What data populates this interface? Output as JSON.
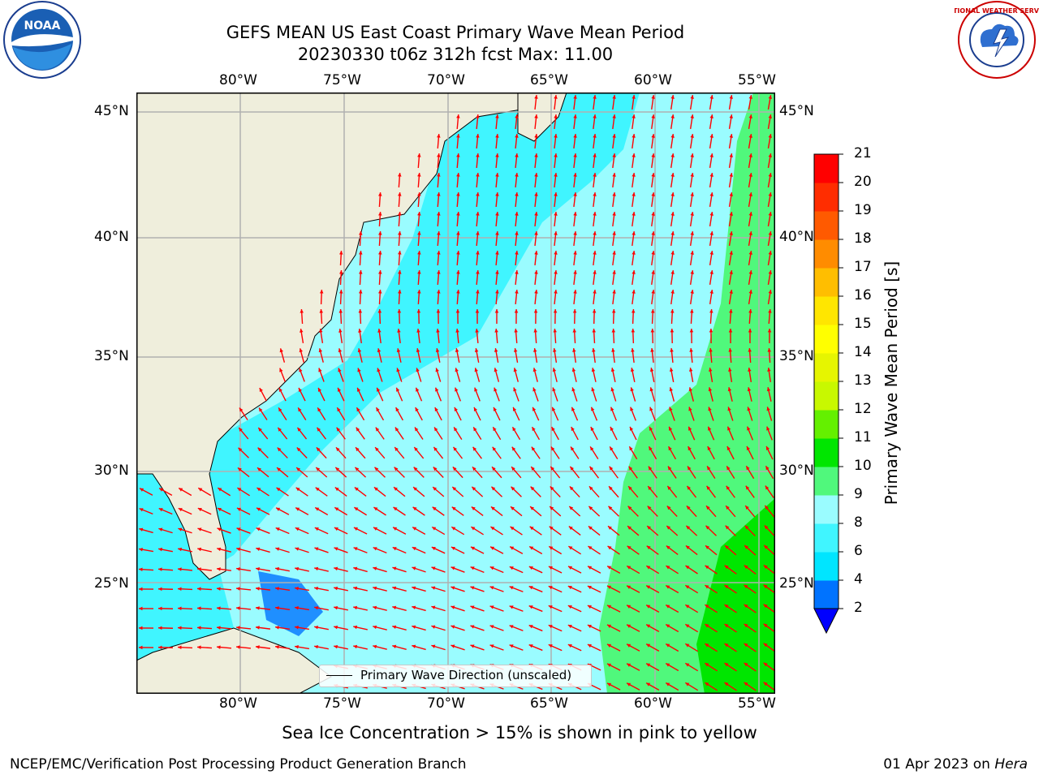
{
  "header": {
    "title_line1": "GEFS MEAN US East Coast Primary Wave Mean Period",
    "title_line2": "20230330 t06z 312h fcst   Max: 11.00"
  },
  "logos": {
    "left": {
      "icon": "noaa-logo",
      "text": "NOAA"
    },
    "right": {
      "icon": "nws-logo",
      "text": "NATIONAL WEATHER SERVICE"
    }
  },
  "map": {
    "lon_labels": [
      "80°W",
      "75°W",
      "70°W",
      "65°W",
      "60°W",
      "55°W"
    ],
    "lat_labels": [
      "45°N",
      "40°N",
      "35°N",
      "30°N",
      "25°N"
    ],
    "legend_label": "Primary Wave Direction (unscaled)",
    "arrow_color": "#ff0000",
    "land_color": "#efeedc"
  },
  "colorbar": {
    "label": "Primary Wave Mean Period [s]",
    "ticks": [
      "2",
      "4",
      "6",
      "8",
      "9",
      "10",
      "11",
      "12",
      "13",
      "14",
      "15",
      "16",
      "17",
      "18",
      "19",
      "20",
      "21"
    ],
    "colors": [
      "#0073ff",
      "#00e5ff",
      "#40f5ff",
      "#9afcff",
      "#50f87c",
      "#00e600",
      "#64f000",
      "#c8f800",
      "#e6f500",
      "#ffff00",
      "#ffe600",
      "#ffbe00",
      "#ff8c00",
      "#ff5a00",
      "#ff2d00",
      "#ff0000"
    ],
    "extend_color": "#0000ff"
  },
  "caption": "Sea Ice Concentration > 15% is shown in pink to yellow",
  "footer": {
    "left": "NCEP/EMC/Verification Post Processing Product Generation Branch",
    "right_prefix": "01 Apr 2023 on ",
    "right_host": "Hera"
  }
}
